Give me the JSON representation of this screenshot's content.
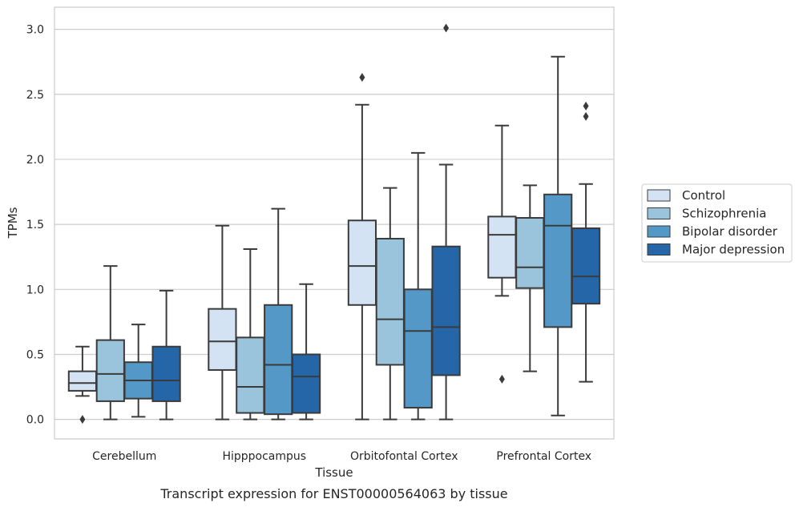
{
  "chart_data": {
    "type": "box",
    "title": "",
    "caption": "Transcript expression for ENST00000564063 by tissue",
    "xlabel": "Tissue",
    "ylabel": "TPMs",
    "ylim": [
      -0.15,
      3.17
    ],
    "yticks": [
      "0.0",
      "0.5",
      "1.0",
      "1.5",
      "2.0",
      "2.5",
      "3.0"
    ],
    "grid": "horizontal",
    "legend_position": "right",
    "categories": [
      "Cerebellum",
      "Hipppocampus",
      "Orbitofontal Cortex",
      "Prefrontal Cortex"
    ],
    "series": [
      {
        "name": "Control",
        "color": "#d4e3f3",
        "boxes": [
          {
            "q1": 0.22,
            "median": 0.28,
            "q3": 0.37,
            "whislo": 0.18,
            "whishi": 0.56,
            "fliers": [
              0.0
            ]
          },
          {
            "q1": 0.38,
            "median": 0.6,
            "q3": 0.85,
            "whislo": 0.0,
            "whishi": 1.49,
            "fliers": []
          },
          {
            "q1": 0.88,
            "median": 1.18,
            "q3": 1.53,
            "whislo": 0.0,
            "whishi": 2.42,
            "fliers": [
              2.63
            ]
          },
          {
            "q1": 1.09,
            "median": 1.42,
            "q3": 1.56,
            "whislo": 0.95,
            "whishi": 2.26,
            "fliers": [
              0.31
            ]
          }
        ]
      },
      {
        "name": "Schizophrenia",
        "color": "#9ac4dc",
        "boxes": [
          {
            "q1": 0.14,
            "median": 0.35,
            "q3": 0.61,
            "whislo": 0.0,
            "whishi": 1.18,
            "fliers": []
          },
          {
            "q1": 0.05,
            "median": 0.25,
            "q3": 0.63,
            "whislo": 0.0,
            "whishi": 1.31,
            "fliers": []
          },
          {
            "q1": 0.42,
            "median": 0.77,
            "q3": 1.39,
            "whislo": 0.0,
            "whishi": 1.78,
            "fliers": []
          },
          {
            "q1": 1.01,
            "median": 1.17,
            "q3": 1.55,
            "whislo": 0.37,
            "whishi": 1.8,
            "fliers": []
          }
        ]
      },
      {
        "name": "Bipolar disorder",
        "color": "#5398c6",
        "boxes": [
          {
            "q1": 0.16,
            "median": 0.3,
            "q3": 0.44,
            "whislo": 0.02,
            "whishi": 0.73,
            "fliers": []
          },
          {
            "q1": 0.04,
            "median": 0.42,
            "q3": 0.88,
            "whislo": 0.0,
            "whishi": 1.62,
            "fliers": []
          },
          {
            "q1": 0.09,
            "median": 0.68,
            "q3": 1.0,
            "whislo": 0.0,
            "whishi": 2.05,
            "fliers": []
          },
          {
            "q1": 0.71,
            "median": 1.49,
            "q3": 1.73,
            "whislo": 0.03,
            "whishi": 2.79,
            "fliers": []
          }
        ]
      },
      {
        "name": "Major depression",
        "color": "#2466a8",
        "boxes": [
          {
            "q1": 0.14,
            "median": 0.3,
            "q3": 0.56,
            "whislo": 0.0,
            "whishi": 0.99,
            "fliers": []
          },
          {
            "q1": 0.05,
            "median": 0.33,
            "q3": 0.5,
            "whislo": 0.0,
            "whishi": 1.04,
            "fliers": []
          },
          {
            "q1": 0.34,
            "median": 0.71,
            "q3": 1.33,
            "whislo": 0.0,
            "whishi": 1.96,
            "fliers": [
              3.01
            ]
          },
          {
            "q1": 0.89,
            "median": 1.1,
            "q3": 1.47,
            "whislo": 0.29,
            "whishi": 1.81,
            "fliers": [
              2.33,
              2.41
            ]
          }
        ]
      }
    ]
  }
}
